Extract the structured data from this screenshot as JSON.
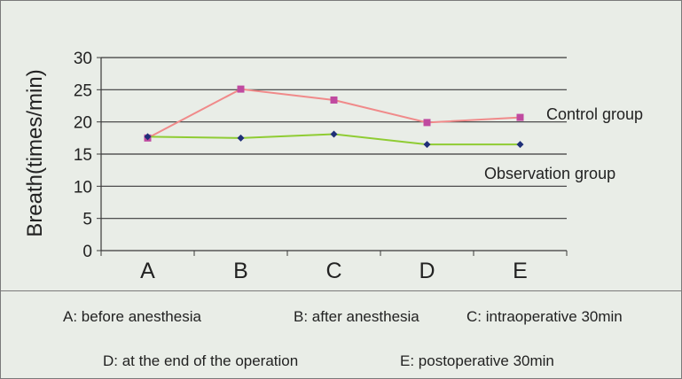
{
  "chart_data": {
    "type": "line",
    "title": "",
    "xlabel": "",
    "ylabel": "Breath(times/min)",
    "categories": [
      "A",
      "B",
      "C",
      "D",
      "E"
    ],
    "ylim": [
      0,
      30
    ],
    "yticks": [
      0,
      5,
      10,
      15,
      20,
      25,
      30
    ],
    "grid": true,
    "series": [
      {
        "name": "Control group",
        "values": [
          17.5,
          25.1,
          23.4,
          19.9,
          20.7
        ],
        "line_color": "#f08a8a",
        "marker_color": "#c04aa0",
        "marker": "square"
      },
      {
        "name": "Observation group",
        "values": [
          17.7,
          17.5,
          18.1,
          16.5,
          16.5
        ],
        "line_color": "#8fcc33",
        "marker_color": "#1f2f78",
        "marker": "diamond"
      }
    ],
    "notes": [
      "A: before anesthesia",
      "B: after anesthesia",
      "C: intraoperative 30min",
      "D: at the end of the operation",
      "E: postoperative 30min"
    ]
  },
  "colors": {
    "background": "#e9ede7",
    "grid": "#3a3a3a",
    "axis": "#3a3a3a",
    "text": "#222222"
  }
}
